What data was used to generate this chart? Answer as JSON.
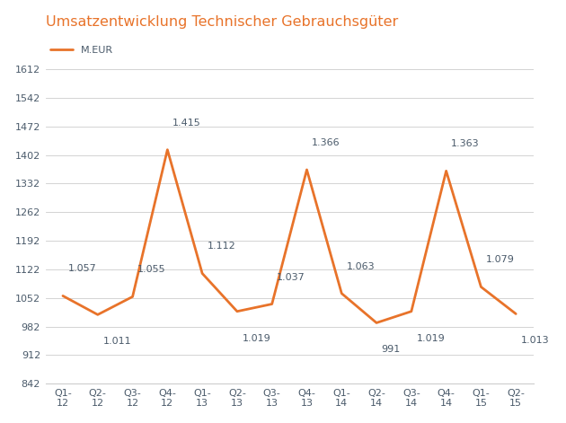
{
  "title": "Umsatzentwicklung Technischer Gebrauchsgüter",
  "title_color": "#E8732A",
  "title_fontsize": 11.5,
  "categories": [
    "Q1-\n12",
    "Q2-\n12",
    "Q3-\n12",
    "Q4-\n12",
    "Q1-\n13",
    "Q2-\n13",
    "Q3-\n13",
    "Q4-\n13",
    "Q1-\n14",
    "Q2-\n14",
    "Q3-\n14",
    "Q4-\n14",
    "Q1-\n15",
    "Q2-\n15"
  ],
  "values": [
    1057,
    1011,
    1055,
    1415,
    1112,
    1019,
    1037,
    1366,
    1063,
    991,
    1019,
    1363,
    1079,
    1013
  ],
  "labels": [
    "1.057",
    "1.011",
    "1.055",
    "1.415",
    "1.112",
    "1.019",
    "1.037",
    "1.366",
    "1.063",
    "991",
    "1.019",
    "1.363",
    "1.079",
    "1.013"
  ],
  "line_color": "#E8732A",
  "line_width": 2.0,
  "legend_label": "M.EUR",
  "ylim": [
    842,
    1682
  ],
  "yticks": [
    842,
    912,
    982,
    1052,
    1122,
    1192,
    1262,
    1332,
    1402,
    1472,
    1542,
    1612
  ],
  "label_color": "#4A5A6A",
  "label_fontsize": 8,
  "tick_color": "#4A5A6A",
  "tick_fontsize": 8,
  "background_color": "#ffffff",
  "grid_color": "#cccccc",
  "spine_color": "#cccccc",
  "label_offsets_y": [
    18,
    -18,
    18,
    18,
    18,
    -18,
    18,
    18,
    18,
    -18,
    -18,
    18,
    18,
    -18
  ],
  "label_offsets_x": [
    4,
    4,
    4,
    4,
    4,
    4,
    4,
    4,
    4,
    4,
    4,
    4,
    4,
    4
  ]
}
